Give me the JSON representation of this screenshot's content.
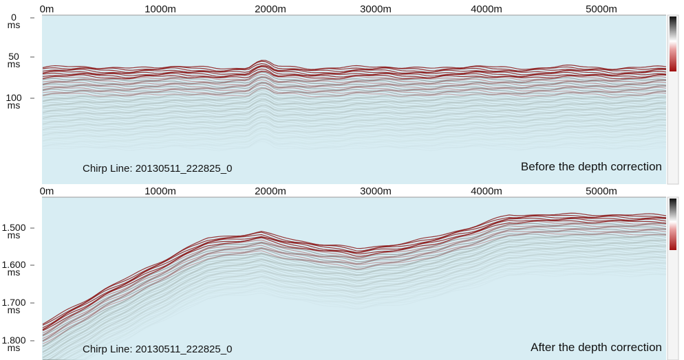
{
  "panels": [
    {
      "x_labels": [
        "0m",
        "1000m",
        "2000m",
        "3000m",
        "4000m",
        "5000m"
      ],
      "y_labels": [
        {
          "value": "0",
          "unit": "ms"
        },
        {
          "value": "50",
          "unit": "ms"
        },
        {
          "value": "100",
          "unit": "ms"
        }
      ],
      "line_label": "Chirp Line: 20130511_222825_0",
      "caption": "Before the depth correction"
    },
    {
      "x_labels": [
        "0m",
        "1000m",
        "2000m",
        "3000m",
        "4000m",
        "5000m"
      ],
      "y_labels": [
        {
          "value": "1.500",
          "unit": "ms"
        },
        {
          "value": "1.600",
          "unit": "ms"
        },
        {
          "value": "1.700",
          "unit": "ms"
        },
        {
          "value": "1.800",
          "unit": "ms"
        }
      ],
      "line_label": "Chirp Line: 20130511_222825_0",
      "caption": "After the depth correction"
    }
  ]
}
